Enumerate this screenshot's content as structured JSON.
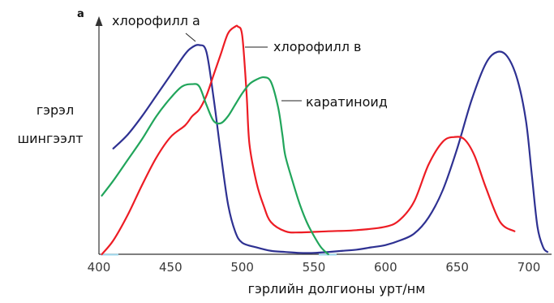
{
  "chart_data": {
    "type": "line",
    "panel_letter": "a",
    "ylabel_lines": [
      "гэрэл",
      "шингээлт"
    ],
    "xlabel": "гэрлийн долгионы урт/нм",
    "xlim": [
      400,
      715
    ],
    "ylim": [
      0,
      1
    ],
    "x_ticks": [
      400,
      450,
      500,
      550,
      600,
      650,
      700
    ],
    "grid": false,
    "series": [
      {
        "name": "хлорофилл а",
        "color": "#2e3192",
        "points": [
          [
            410,
            0.46
          ],
          [
            420,
            0.52
          ],
          [
            430,
            0.6
          ],
          [
            440,
            0.69
          ],
          [
            450,
            0.78
          ],
          [
            460,
            0.87
          ],
          [
            465,
            0.9
          ],
          [
            470,
            0.91
          ],
          [
            475,
            0.88
          ],
          [
            480,
            0.68
          ],
          [
            485,
            0.44
          ],
          [
            490,
            0.22
          ],
          [
            495,
            0.1
          ],
          [
            500,
            0.05
          ],
          [
            510,
            0.03
          ],
          [
            520,
            0.015
          ],
          [
            530,
            0.01
          ],
          [
            540,
            0.006
          ],
          [
            550,
            0.006
          ],
          [
            560,
            0.01
          ],
          [
            570,
            0.015
          ],
          [
            580,
            0.02
          ],
          [
            590,
            0.03
          ],
          [
            600,
            0.04
          ],
          [
            610,
            0.06
          ],
          [
            620,
            0.09
          ],
          [
            630,
            0.16
          ],
          [
            640,
            0.28
          ],
          [
            650,
            0.46
          ],
          [
            660,
            0.67
          ],
          [
            670,
            0.83
          ],
          [
            678,
            0.88
          ],
          [
            685,
            0.86
          ],
          [
            692,
            0.76
          ],
          [
            698,
            0.58
          ],
          [
            702,
            0.35
          ],
          [
            706,
            0.12
          ],
          [
            710,
            0.03
          ],
          [
            713,
            0.01
          ]
        ]
      },
      {
        "name": "хлорофилл в",
        "color": "#ed1c24",
        "points": [
          [
            402,
            0.0
          ],
          [
            410,
            0.06
          ],
          [
            420,
            0.17
          ],
          [
            430,
            0.3
          ],
          [
            440,
            0.42
          ],
          [
            450,
            0.51
          ],
          [
            460,
            0.56
          ],
          [
            465,
            0.6
          ],
          [
            470,
            0.63
          ],
          [
            475,
            0.69
          ],
          [
            480,
            0.78
          ],
          [
            485,
            0.87
          ],
          [
            490,
            0.96
          ],
          [
            495,
            0.99
          ],
          [
            497,
            0.99
          ],
          [
            500,
            0.95
          ],
          [
            503,
            0.7
          ],
          [
            505,
            0.48
          ],
          [
            510,
            0.31
          ],
          [
            515,
            0.21
          ],
          [
            520,
            0.14
          ],
          [
            530,
            0.1
          ],
          [
            540,
            0.095
          ],
          [
            560,
            0.1
          ],
          [
            580,
            0.105
          ],
          [
            600,
            0.12
          ],
          [
            610,
            0.15
          ],
          [
            620,
            0.23
          ],
          [
            630,
            0.39
          ],
          [
            640,
            0.49
          ],
          [
            648,
            0.51
          ],
          [
            655,
            0.5
          ],
          [
            662,
            0.43
          ],
          [
            670,
            0.29
          ],
          [
            680,
            0.14
          ],
          [
            690,
            0.1
          ]
        ]
      },
      {
        "name": "каратиноид",
        "color": "#21a55b",
        "points": [
          [
            402,
            0.255
          ],
          [
            410,
            0.32
          ],
          [
            420,
            0.41
          ],
          [
            430,
            0.5
          ],
          [
            440,
            0.6
          ],
          [
            450,
            0.68
          ],
          [
            458,
            0.73
          ],
          [
            465,
            0.74
          ],
          [
            470,
            0.73
          ],
          [
            475,
            0.65
          ],
          [
            480,
            0.58
          ],
          [
            485,
            0.57
          ],
          [
            490,
            0.6
          ],
          [
            495,
            0.65
          ],
          [
            500,
            0.7
          ],
          [
            505,
            0.74
          ],
          [
            510,
            0.76
          ],
          [
            515,
            0.77
          ],
          [
            520,
            0.75
          ],
          [
            525,
            0.64
          ],
          [
            528,
            0.52
          ],
          [
            530,
            0.43
          ],
          [
            535,
            0.32
          ],
          [
            540,
            0.22
          ],
          [
            545,
            0.14
          ],
          [
            550,
            0.08
          ],
          [
            555,
            0.03
          ],
          [
            560,
            0.0
          ]
        ]
      }
    ],
    "annotations": [
      {
        "text": "хлорофилл а",
        "series": "хлорофилл а"
      },
      {
        "text": "хлорофилл в",
        "series": "хлорофилл в"
      },
      {
        "text": "каратиноид",
        "series": "каратиноид"
      }
    ]
  }
}
